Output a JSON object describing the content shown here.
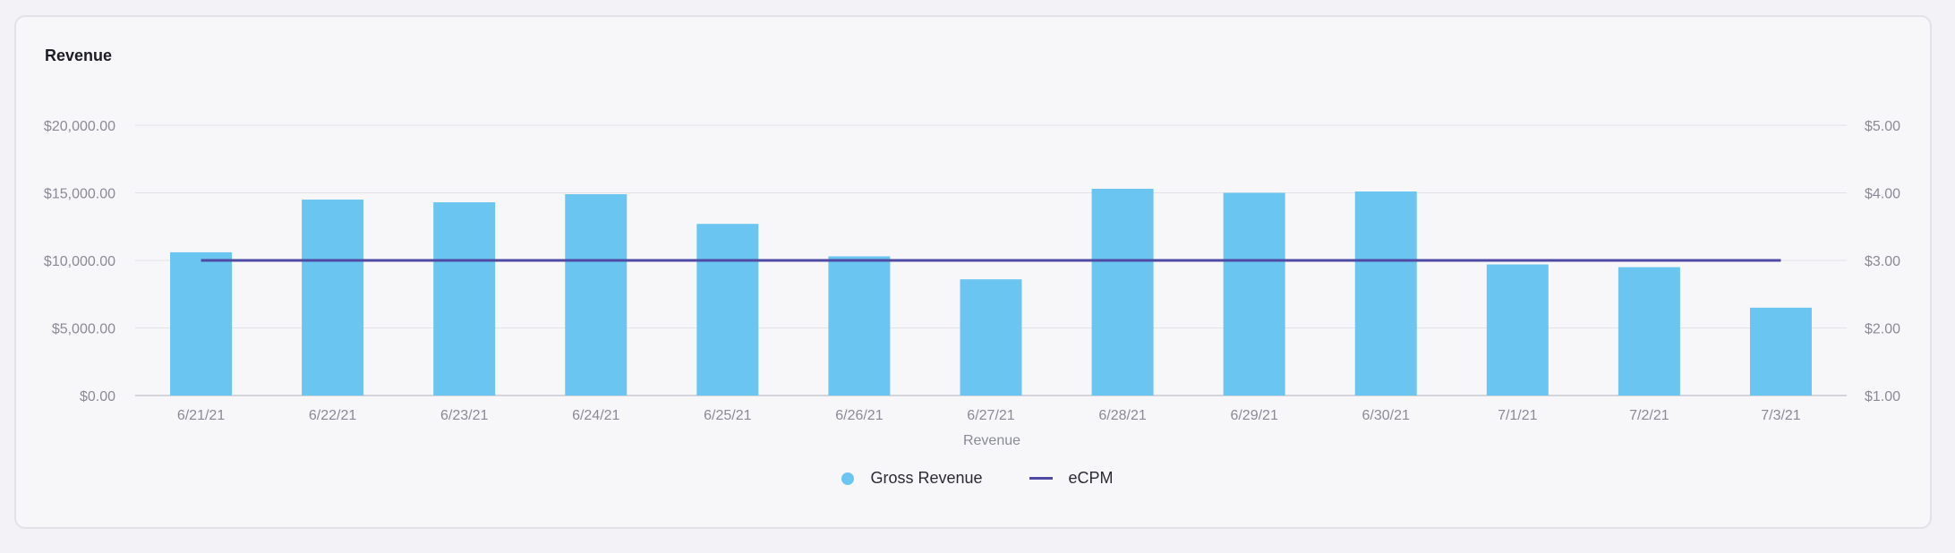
{
  "card": {
    "title": "Revenue"
  },
  "colors": {
    "bar": "#6ac5f1",
    "line": "#4f4aa3",
    "grid": "#e2e2e8",
    "axis": "#c9c9d1"
  },
  "chart_data": {
    "type": "bar",
    "categories": [
      "6/21/21",
      "6/22/21",
      "6/23/21",
      "6/24/21",
      "6/25/21",
      "6/26/21",
      "6/27/21",
      "6/28/21",
      "6/29/21",
      "6/30/21",
      "7/1/21",
      "7/2/21",
      "7/3/21"
    ],
    "series": [
      {
        "name": "Gross Revenue",
        "type": "bar",
        "axis": "left",
        "values": [
          10600,
          14500,
          14300,
          14900,
          12700,
          10300,
          8600,
          15300,
          15000,
          15100,
          9700,
          9500,
          6500
        ]
      },
      {
        "name": "eCPM",
        "type": "line",
        "axis": "right",
        "values": [
          3.0,
          3.0,
          3.0,
          3.0,
          3.0,
          3.0,
          3.0,
          3.0,
          3.0,
          3.0,
          3.0,
          3.0,
          3.0
        ]
      }
    ],
    "xlabel": "Revenue",
    "ylim_left": [
      0,
      20000
    ],
    "ylim_right": [
      1,
      5
    ],
    "left_ticks": [
      "$0.00",
      "$5,000.00",
      "$10,000.00",
      "$15,000.00",
      "$20,000.00"
    ],
    "right_ticks": [
      "$1.00",
      "$2.00",
      "$3.00",
      "$4.00",
      "$5.00"
    ],
    "grid": true,
    "legend": "bottom-center"
  },
  "legend": {
    "items": [
      {
        "label": "Gross Revenue",
        "icon": "circle"
      },
      {
        "label": "eCPM",
        "icon": "line"
      }
    ]
  }
}
